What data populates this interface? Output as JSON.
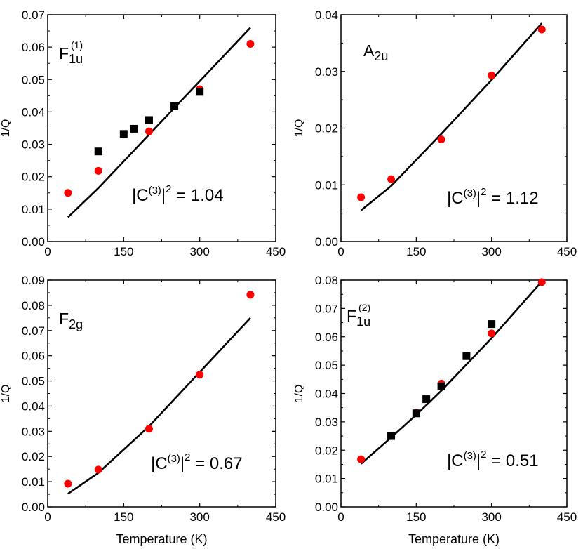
{
  "figure": {
    "x_axis_title": "Temperature (K)",
    "y_axis_title": "1/Q",
    "colors": {
      "red_series": "#ff0000",
      "black_series": "#000000",
      "line": "#000000"
    }
  },
  "chart_data": [
    {
      "type": "scatter",
      "panel": "top-left",
      "label": {
        "main": "F",
        "sub": "1u",
        "sup": "(1)"
      },
      "annotation": {
        "prefix": "|C",
        "sup1": "(3)",
        "mid": "|",
        "sup2": "2",
        "suffix": " = 1.04"
      },
      "xlabel": "",
      "ylabel": "1/Q",
      "xlim": [
        0,
        450
      ],
      "ylim": [
        0,
        0.07
      ],
      "x_ticks": [
        "0",
        "150",
        "300",
        "450"
      ],
      "y_ticks": [
        "0.00",
        "0.01",
        "0.02",
        "0.03",
        "0.04",
        "0.05",
        "0.06",
        "0.07"
      ],
      "series": [
        {
          "name": "red circles",
          "marker": "circle",
          "color": "#ff0000",
          "x": [
            40,
            100,
            200,
            300,
            400
          ],
          "y": [
            0.015,
            0.0218,
            0.034,
            0.047,
            0.061
          ]
        },
        {
          "name": "black squares",
          "marker": "square",
          "color": "#000000",
          "x": [
            100,
            150,
            170,
            200,
            250,
            300
          ],
          "y": [
            0.0278,
            0.0332,
            0.0348,
            0.0375,
            0.0418,
            0.0462
          ]
        },
        {
          "name": "fit line",
          "marker": "line",
          "color": "#000000",
          "x": [
            40,
            100,
            200,
            300,
            400
          ],
          "y": [
            0.0075,
            0.0165,
            0.033,
            0.0495,
            0.066
          ]
        }
      ]
    },
    {
      "type": "scatter",
      "panel": "top-right",
      "label": {
        "main": "A",
        "sub": "2u",
        "sup": ""
      },
      "annotation": {
        "prefix": "|C",
        "sup1": "(3)",
        "mid": "|",
        "sup2": "2",
        "suffix": " = 1.12"
      },
      "xlabel": "",
      "ylabel": "1/Q",
      "xlim": [
        0,
        450
      ],
      "ylim": [
        0,
        0.04
      ],
      "x_ticks": [
        "0",
        "150",
        "300",
        "450"
      ],
      "y_ticks": [
        "0.00",
        "0.01",
        "0.02",
        "0.03",
        "0.04"
      ],
      "series": [
        {
          "name": "red circles",
          "marker": "circle",
          "color": "#ff0000",
          "x": [
            40,
            100,
            200,
            300,
            400
          ],
          "y": [
            0.0078,
            0.011,
            0.018,
            0.0293,
            0.0374
          ]
        },
        {
          "name": "fit line",
          "marker": "line",
          "color": "#000000",
          "x": [
            40,
            100,
            200,
            300,
            400
          ],
          "y": [
            0.0055,
            0.0098,
            0.019,
            0.0285,
            0.0385
          ]
        }
      ]
    },
    {
      "type": "scatter",
      "panel": "bottom-left",
      "label": {
        "main": "F",
        "sub": "2g",
        "sup": ""
      },
      "annotation": {
        "prefix": "|C",
        "sup1": "(3)",
        "mid": "|",
        "sup2": "2",
        "suffix": " = 0.67"
      },
      "xlabel": "Temperature (K)",
      "ylabel": "1/Q",
      "xlim": [
        0,
        450
      ],
      "ylim": [
        0,
        0.09
      ],
      "x_ticks": [
        "0",
        "150",
        "300",
        "450"
      ],
      "y_ticks": [
        "0.00",
        "0.01",
        "0.02",
        "0.03",
        "0.04",
        "0.05",
        "0.06",
        "0.07",
        "0.08",
        "0.09"
      ],
      "series": [
        {
          "name": "red circles",
          "marker": "circle",
          "color": "#ff0000",
          "x": [
            40,
            100,
            200,
            300,
            400
          ],
          "y": [
            0.0092,
            0.0148,
            0.031,
            0.0525,
            0.0842
          ]
        },
        {
          "name": "fit line",
          "marker": "line",
          "color": "#000000",
          "x": [
            40,
            100,
            200,
            300,
            400
          ],
          "y": [
            0.0052,
            0.0135,
            0.032,
            0.0535,
            0.075
          ]
        }
      ]
    },
    {
      "type": "scatter",
      "panel": "bottom-right",
      "label": {
        "main": "F",
        "sub": "1u",
        "sup": "(2)"
      },
      "annotation": {
        "prefix": "|C",
        "sup1": "(3)",
        "mid": "|",
        "sup2": "2",
        "suffix": " = 0.51"
      },
      "xlabel": "Temperature (K)",
      "ylabel": "1/Q",
      "xlim": [
        0,
        450
      ],
      "ylim": [
        0,
        0.08
      ],
      "x_ticks": [
        "0",
        "150",
        "300",
        "450"
      ],
      "y_ticks": [
        "0.00",
        "0.01",
        "0.02",
        "0.03",
        "0.04",
        "0.05",
        "0.06",
        "0.07",
        "0.08"
      ],
      "series": [
        {
          "name": "red circles",
          "marker": "circle",
          "color": "#ff0000",
          "x": [
            40,
            100,
            150,
            200,
            300,
            400
          ],
          "y": [
            0.0168,
            0.025,
            0.0332,
            0.0435,
            0.0612,
            0.0793
          ]
        },
        {
          "name": "black squares",
          "marker": "square",
          "color": "#000000",
          "x": [
            100,
            150,
            170,
            200,
            250,
            300
          ],
          "y": [
            0.025,
            0.033,
            0.038,
            0.0425,
            0.0532,
            0.0645
          ]
        },
        {
          "name": "fit line",
          "marker": "line",
          "color": "#000000",
          "x": [
            40,
            100,
            150,
            200,
            300,
            400
          ],
          "y": [
            0.0152,
            0.0245,
            0.0325,
            0.041,
            0.0595,
            0.0795
          ]
        }
      ]
    }
  ]
}
